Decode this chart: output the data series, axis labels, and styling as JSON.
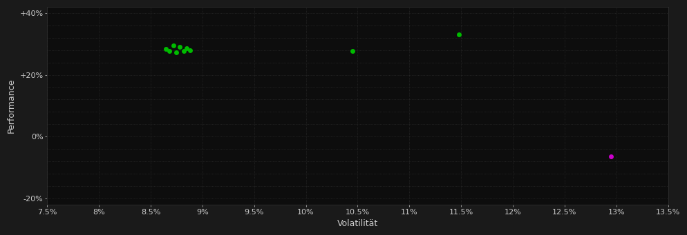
{
  "background_color": "#1a1a1a",
  "plot_bg_color": "#0d0d0d",
  "grid_color": "#2a2a2a",
  "text_color": "#cccccc",
  "xlabel": "Volatilität",
  "ylabel": "Performance",
  "xlim": [
    0.075,
    0.135
  ],
  "ylim": [
    -0.22,
    0.42
  ],
  "xticks": [
    0.075,
    0.08,
    0.085,
    0.09,
    0.095,
    0.1,
    0.105,
    0.11,
    0.115,
    0.12,
    0.125,
    0.13,
    0.135
  ],
  "xtick_labels": [
    "7.5%",
    "8%",
    "8.5%",
    "9%",
    "9.5%",
    "10%",
    "10.5%",
    "11%",
    "11.5%",
    "12%",
    "12.5%",
    "13%",
    "13.5%"
  ],
  "yticks_labeled": [
    -0.2,
    0.0,
    0.2,
    0.4
  ],
  "ytick_labels": [
    "-20%",
    "0%",
    "+20%",
    "+40%"
  ],
  "yticks_minor": [
    -0.2,
    -0.16,
    -0.12,
    -0.08,
    -0.04,
    0.0,
    0.04,
    0.08,
    0.12,
    0.16,
    0.2,
    0.24,
    0.28,
    0.32,
    0.36,
    0.4
  ],
  "green_points": [
    [
      0.0872,
      0.295
    ],
    [
      0.0878,
      0.29
    ],
    [
      0.0865,
      0.283
    ],
    [
      0.0868,
      0.278
    ],
    [
      0.0875,
      0.272
    ],
    [
      0.0882,
      0.278
    ],
    [
      0.0885,
      0.285
    ],
    [
      0.0888,
      0.28
    ],
    [
      0.1045,
      0.278
    ],
    [
      0.1148,
      0.33
    ]
  ],
  "magenta_points": [
    [
      0.1295,
      -0.065
    ]
  ],
  "green_color": "#00bb00",
  "magenta_color": "#cc00cc",
  "marker_size": 5
}
